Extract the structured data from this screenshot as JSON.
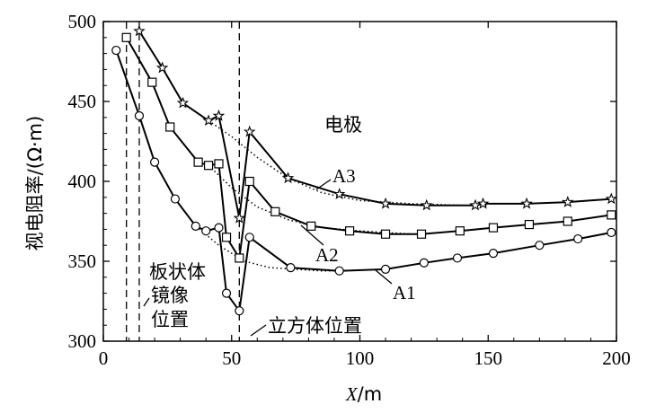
{
  "chart_data": {
    "type": "line",
    "title": "",
    "xlabel_var": "X",
    "xlabel_unit": "/m",
    "ylabel": "视电阻率/(Ω·m)",
    "xlim": [
      0,
      200
    ],
    "ylim": [
      300,
      500
    ],
    "xticks": [
      0,
      50,
      100,
      150,
      200
    ],
    "yticks": [
      300,
      350,
      400,
      450,
      500
    ],
    "grid": false,
    "series": [
      {
        "name": "A1",
        "marker": "circle",
        "x": [
          5,
          14,
          20,
          28,
          36,
          40,
          45,
          48,
          53,
          57,
          73,
          92,
          110,
          125,
          138,
          152,
          170,
          185,
          198
        ],
        "y": [
          482,
          441,
          412,
          389,
          372,
          369,
          371,
          330,
          319,
          365,
          346,
          344,
          345,
          349,
          352,
          355,
          360,
          364,
          368
        ]
      },
      {
        "name": "A2",
        "marker": "square",
        "x": [
          9,
          19,
          26,
          37,
          41,
          45,
          48,
          53,
          57,
          67,
          81,
          96,
          110,
          124,
          139,
          152,
          166,
          181,
          198
        ],
        "y": [
          490,
          462,
          434,
          412,
          410,
          411,
          365,
          352,
          400,
          381,
          372,
          369,
          367,
          367,
          369,
          371,
          373,
          375,
          379
        ]
      },
      {
        "name": "A3",
        "marker": "star",
        "x": [
          14,
          23,
          31,
          41,
          45,
          53,
          57,
          72,
          92,
          110,
          126,
          145,
          148,
          165,
          181,
          198
        ],
        "y": [
          494,
          471,
          449,
          438,
          441,
          377,
          431,
          402,
          392,
          386,
          385,
          385,
          386,
          386,
          387,
          389
        ]
      }
    ],
    "dotted_reference_curves": [
      {
        "x": [
          41,
          50,
          60,
          72,
          85,
          100,
          120,
          140,
          150
        ],
        "y": [
          438,
          428,
          415,
          402,
          393,
          388,
          386,
          385,
          385
        ]
      },
      {
        "x": [
          41,
          50,
          60,
          72,
          85,
          100,
          120
        ],
        "y": [
          410,
          396,
          384,
          376,
          371,
          369,
          367
        ]
      },
      {
        "x": [
          36,
          45,
          55,
          65,
          75,
          85,
          95
        ],
        "y": [
          372,
          360,
          350,
          346,
          345,
          344,
          344
        ]
      }
    ],
    "vertical_lines": [
      9,
      14,
      53
    ],
    "annotations": {
      "electrode": "电极",
      "plate_line1": "板状体",
      "plate_line2": "镜像",
      "plate_line3": "位置",
      "cube": "立方体位置"
    }
  }
}
